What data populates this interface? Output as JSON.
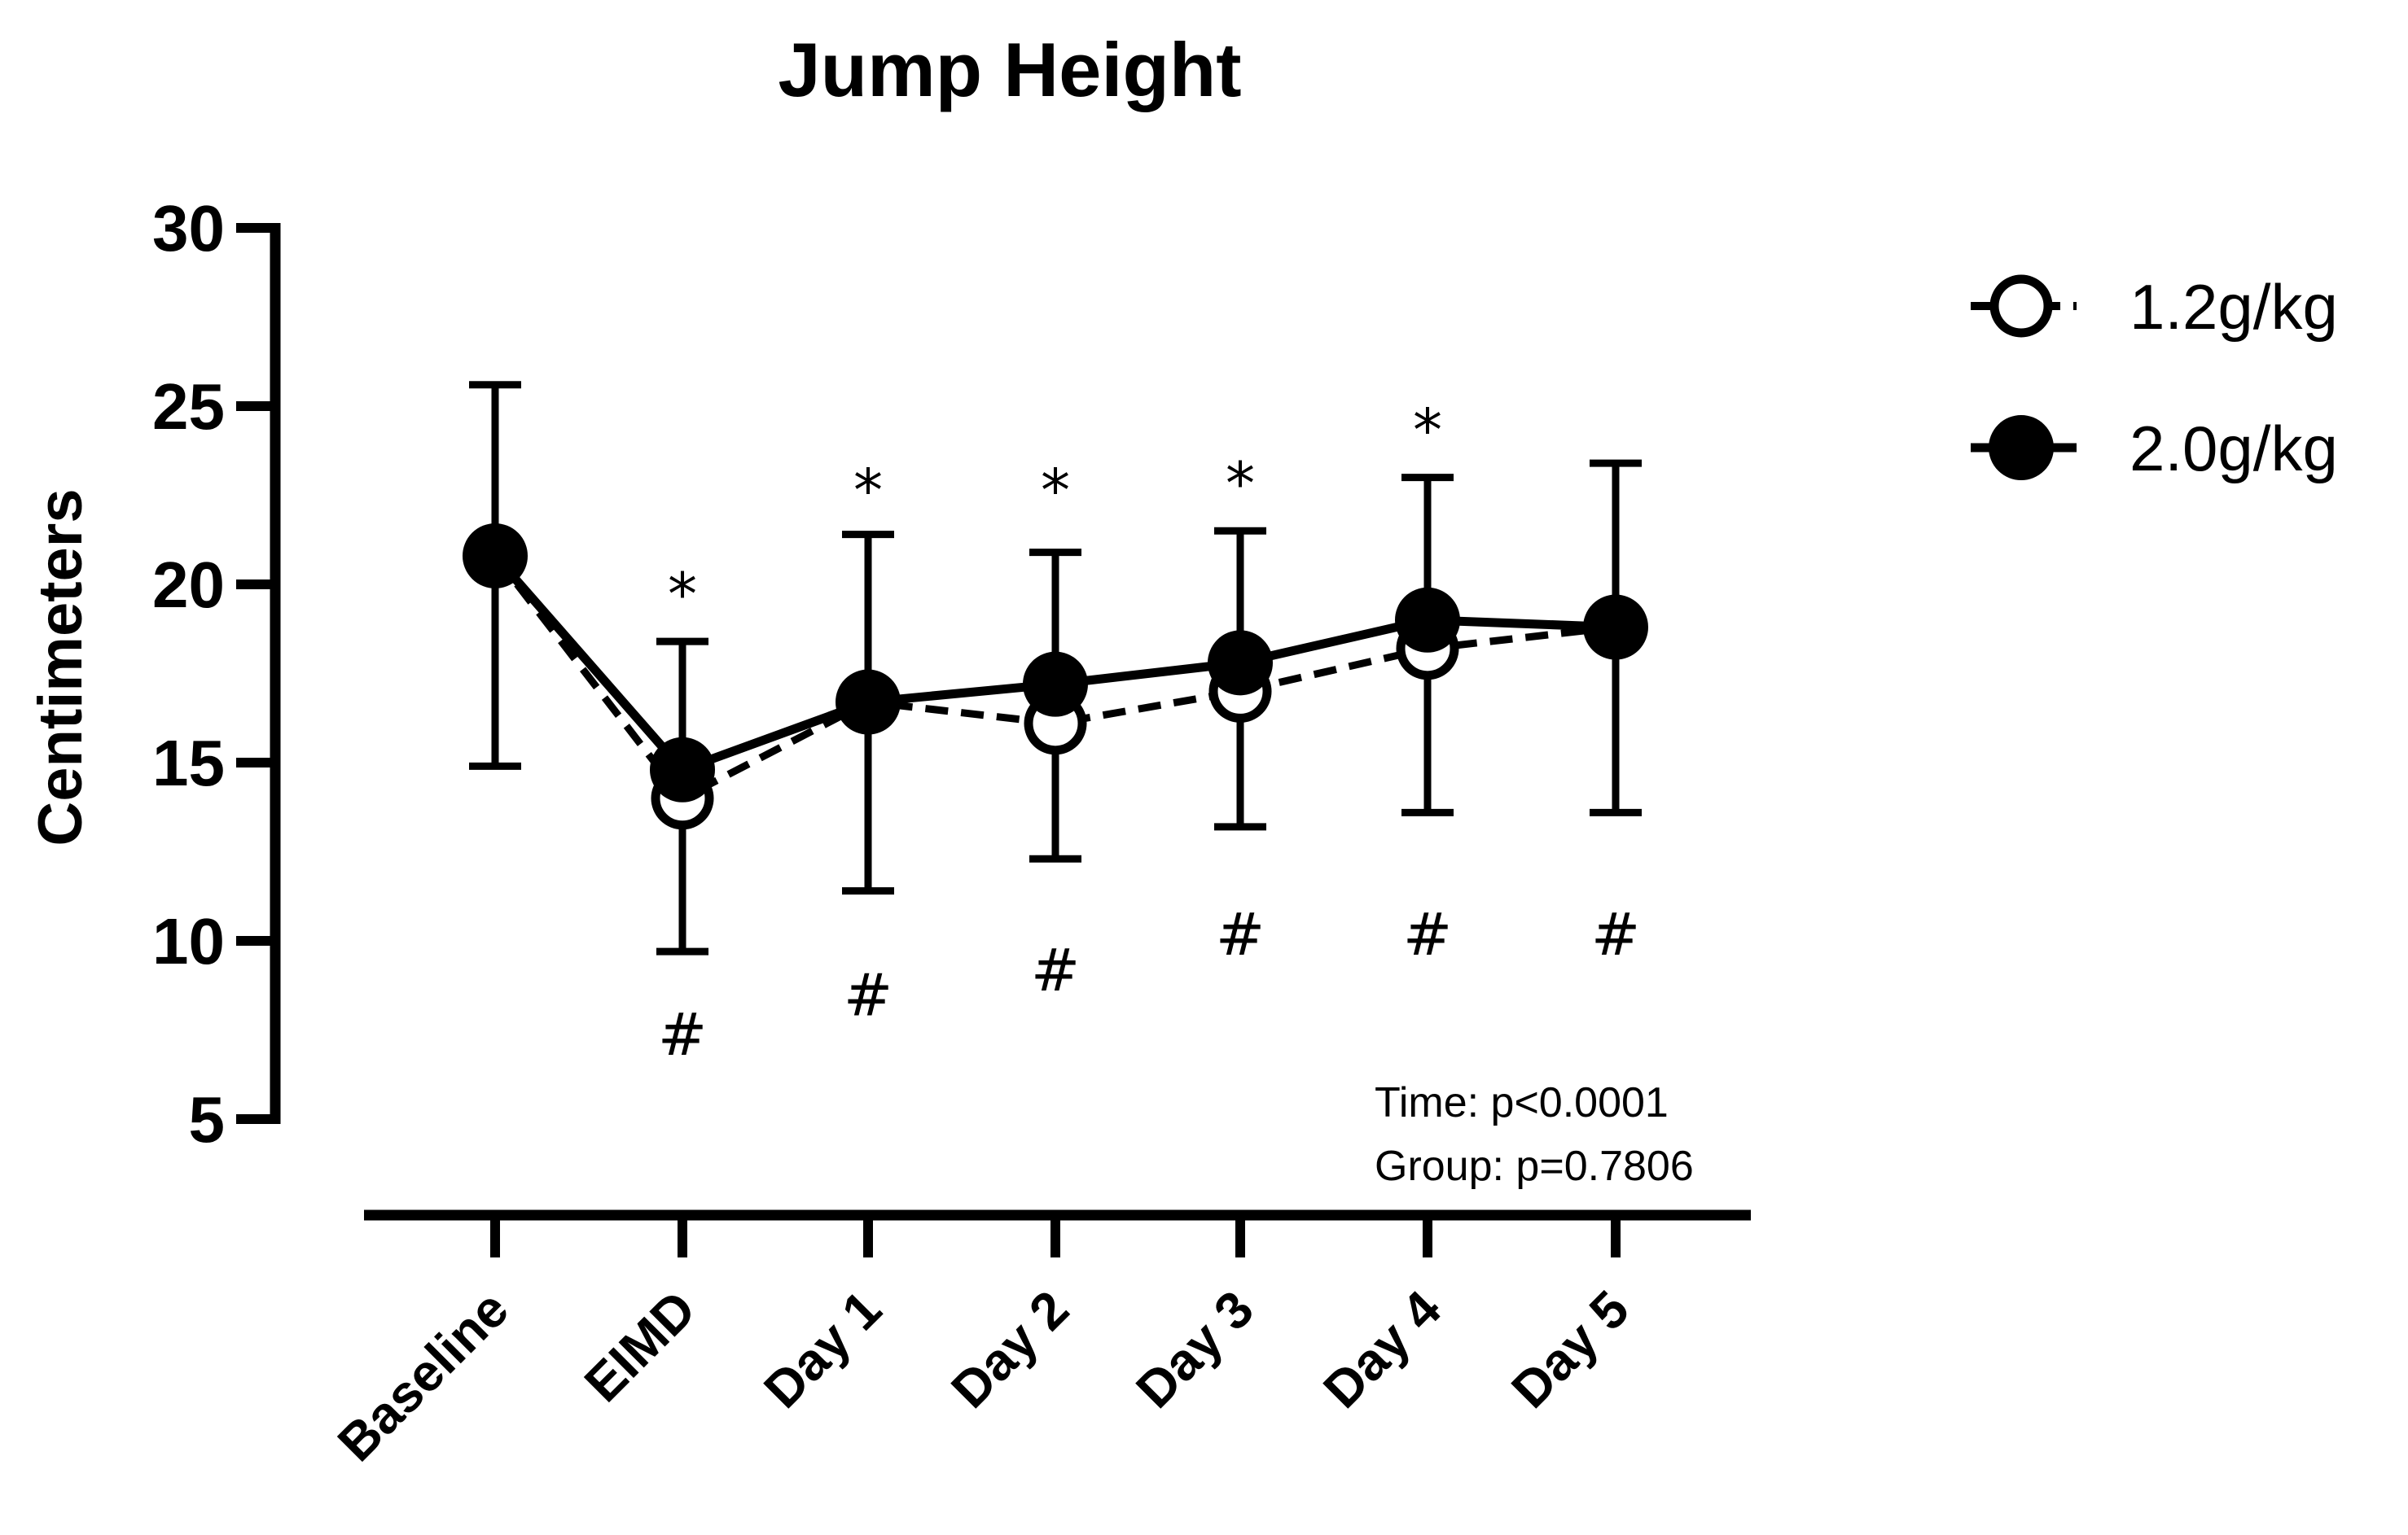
{
  "chart_data": {
    "type": "line",
    "title": "Jump Height",
    "xlabel": "",
    "ylabel": "Centimeters",
    "ylim": [
      5,
      30
    ],
    "yticks": [
      "5",
      "10",
      "15",
      "20",
      "25",
      "30"
    ],
    "categories": [
      "Baseline",
      "EIMD",
      "Day 1",
      "Day 2",
      "Day 3",
      "Day 4",
      "Day 5"
    ],
    "legend_position": "top-right",
    "series": [
      {
        "name": "1.2g/kg",
        "marker": "open-circle",
        "line_style": "dashed",
        "values": [
          20.8,
          14.0,
          16.7,
          16.1,
          17.0,
          18.2,
          18.8
        ]
      },
      {
        "name": "2.0g/kg",
        "marker": "filled-circle",
        "line_style": "solid",
        "values": [
          20.8,
          14.8,
          16.7,
          17.2,
          17.8,
          19.0,
          18.8
        ],
        "error_upper": [
          25.6,
          18.4,
          21.4,
          20.9,
          21.5,
          23.0,
          23.4
        ],
        "error_lower": [
          14.9,
          9.7,
          11.4,
          12.3,
          13.2,
          13.6,
          13.6
        ]
      }
    ],
    "significance": {
      "asterisk_symbol": "*",
      "asterisk_categories": [
        "EIMD",
        "Day 1",
        "Day 2",
        "Day 3",
        "Day 4"
      ],
      "asterisk_y": [
        19.8,
        22.7,
        22.7,
        22.9,
        24.4
      ],
      "hash_symbol": "#",
      "hash_categories": [
        "EIMD",
        "Day 1",
        "Day 2",
        "Day 3",
        "Day 4",
        "Day 5"
      ],
      "hash_y": [
        7.4,
        8.5,
        9.2,
        10.2,
        10.2,
        10.2
      ]
    },
    "stats_annotation": {
      "time": "Time: p<0.0001",
      "group": "Group: p=0.7806"
    }
  }
}
